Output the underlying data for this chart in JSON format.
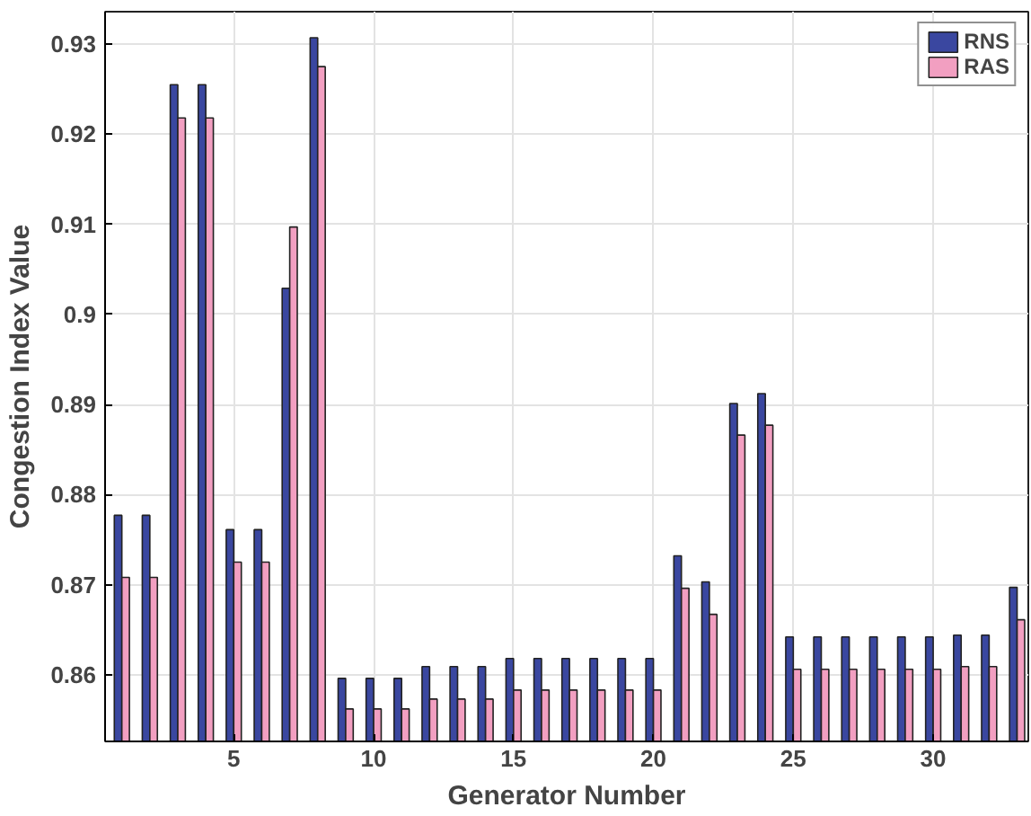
{
  "chart_data": {
    "type": "bar",
    "xlabel": "Generator Number",
    "ylabel": "Congestion Index Value",
    "x": [
      1,
      2,
      3,
      4,
      5,
      6,
      7,
      8,
      9,
      10,
      11,
      12,
      13,
      14,
      15,
      16,
      17,
      18,
      19,
      20,
      21,
      22,
      23,
      24,
      25,
      26,
      27,
      28,
      29,
      30,
      31,
      32,
      33
    ],
    "series": [
      {
        "name": "RNS",
        "color": "#3a47a0",
        "values": [
          0.8777,
          0.8777,
          0.9255,
          0.9255,
          0.8761,
          0.8761,
          0.9029,
          0.9307,
          0.8596,
          0.8596,
          0.8596,
          0.8609,
          0.8609,
          0.8609,
          0.8618,
          0.8618,
          0.8618,
          0.8618,
          0.8618,
          0.8618,
          0.8732,
          0.8703,
          0.8901,
          0.8912,
          0.8642,
          0.8642,
          0.8642,
          0.8642,
          0.8642,
          0.8642,
          0.8644,
          0.8644,
          0.8697
        ]
      },
      {
        "name": "RAS",
        "color": "#f29fc1",
        "values": [
          0.8708,
          0.8708,
          0.9218,
          0.9218,
          0.8725,
          0.8725,
          0.9097,
          0.9275,
          0.8562,
          0.8562,
          0.8562,
          0.8573,
          0.8573,
          0.8573,
          0.8583,
          0.8583,
          0.8583,
          0.8583,
          0.8583,
          0.8583,
          0.8696,
          0.8667,
          0.8866,
          0.8877,
          0.8606,
          0.8606,
          0.8606,
          0.8606,
          0.8606,
          0.8606,
          0.8609,
          0.8609,
          0.8661
        ]
      }
    ],
    "xlim": [
      0.4,
      33.4
    ],
    "ylim": [
      0.8526,
      0.9336
    ],
    "xticks": [
      5,
      10,
      15,
      20,
      25,
      30
    ],
    "yticks": [
      0.86,
      0.87,
      0.88,
      0.89,
      0.9,
      0.91,
      0.92,
      0.93
    ],
    "grid": true,
    "legend": "top right"
  }
}
